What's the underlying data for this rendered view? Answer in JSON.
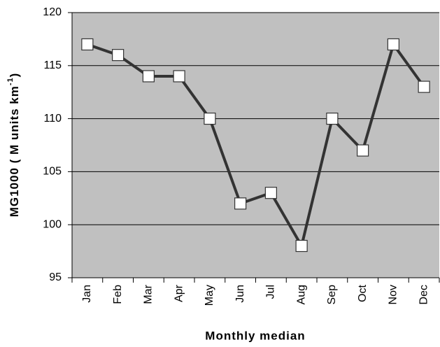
{
  "chart_data": {
    "type": "line",
    "xlabel": "Monthly median",
    "ylabel": [
      "MG1000 ( M units  km",
      "-1",
      ")"
    ],
    "categories": [
      "Jan",
      "Feb",
      "Mar",
      "Apr",
      "May",
      "Jun",
      "Jul",
      "Aug",
      "Sep",
      "Oct",
      "Nov",
      "Dec"
    ],
    "values": [
      117,
      116,
      114,
      114,
      110,
      102,
      103,
      98,
      110,
      107,
      117,
      113
    ],
    "color": "#333333",
    "marker_color": "#ffffff",
    "background": "#c0c0c0",
    "ylim": [
      95,
      120
    ],
    "yticks": [
      95,
      100,
      105,
      110,
      115,
      120
    ],
    "grid": true
  }
}
